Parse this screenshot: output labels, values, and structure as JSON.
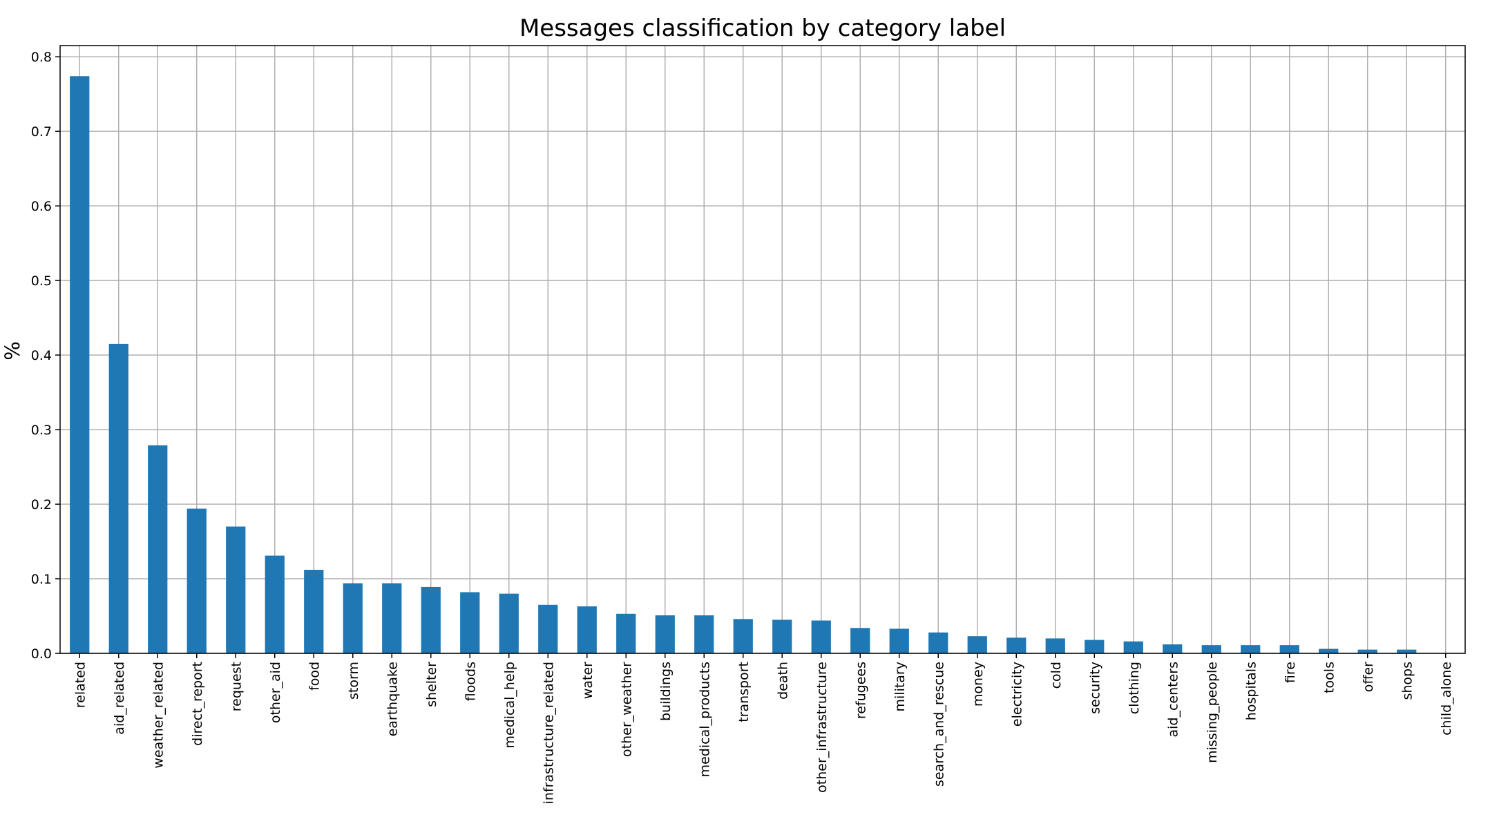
{
  "chart_data": {
    "type": "bar",
    "title": "Messages classification by category label",
    "xlabel": "",
    "ylabel": "%",
    "ylim": [
      0,
      0.815
    ],
    "yticks": [
      "0.0",
      "0.1",
      "0.2",
      "0.3",
      "0.4",
      "0.5",
      "0.6",
      "0.7",
      "0.8"
    ],
    "grid": true,
    "legend": "none",
    "bar_color": "#1f77b4",
    "categories": [
      "related",
      "aid_related",
      "weather_related",
      "direct_report",
      "request",
      "other_aid",
      "food",
      "storm",
      "earthquake",
      "shelter",
      "floods",
      "medical_help",
      "infrastructure_related",
      "water",
      "other_weather",
      "buildings",
      "medical_products",
      "transport",
      "death",
      "other_infrastructure",
      "refugees",
      "military",
      "search_and_rescue",
      "money",
      "electricity",
      "cold",
      "security",
      "clothing",
      "aid_centers",
      "missing_people",
      "hospitals",
      "fire",
      "tools",
      "offer",
      "shops",
      "child_alone"
    ],
    "values": [
      0.774,
      0.415,
      0.279,
      0.194,
      0.17,
      0.131,
      0.112,
      0.094,
      0.094,
      0.089,
      0.082,
      0.08,
      0.065,
      0.063,
      0.053,
      0.051,
      0.051,
      0.046,
      0.045,
      0.044,
      0.034,
      0.033,
      0.028,
      0.023,
      0.021,
      0.02,
      0.018,
      0.016,
      0.012,
      0.011,
      0.011,
      0.011,
      0.006,
      0.005,
      0.005,
      0.0
    ]
  }
}
